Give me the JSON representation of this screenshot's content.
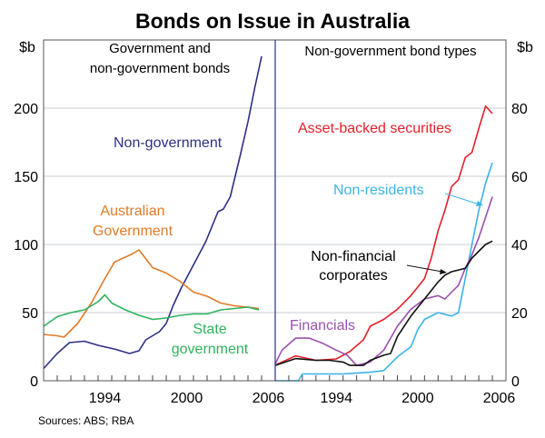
{
  "chart_data": [
    {
      "type": "line",
      "panel_title": "Government and non-government bonds",
      "ylabel": "$b",
      "ylim": [
        0,
        250
      ],
      "yticks": [
        0,
        50,
        100,
        150,
        200
      ],
      "xlim": [
        1990,
        2007
      ],
      "xtick_labels": [
        "1994",
        "2000",
        "2006"
      ],
      "grid": true,
      "series": [
        {
          "name": "Non-government",
          "color": "#2e2f87",
          "x": [
            1990,
            1991,
            1991.9,
            1993,
            1994,
            1995.3,
            1996.3,
            1997,
            1997.5,
            1998.5,
            1999,
            1999.5,
            2000.1,
            2001,
            2001.9,
            2002.8,
            2003.2,
            2003.7,
            2004.4,
            2005,
            2005.5,
            2006
          ],
          "y": [
            9,
            20,
            28,
            29,
            26,
            23,
            20,
            22,
            30,
            36,
            42,
            55,
            68,
            85,
            102,
            124,
            126,
            135,
            164,
            190,
            215,
            238
          ]
        },
        {
          "name": "Australian Government",
          "color": "#e07b27",
          "x": [
            1990,
            1991,
            1991.5,
            1992.5,
            1993.5,
            1994.5,
            1995.2,
            1996.5,
            1997,
            1998,
            1999,
            2000,
            2001,
            2002,
            2003,
            2004,
            2005,
            2005.8
          ],
          "y": [
            34,
            33,
            32,
            42,
            57,
            75,
            87,
            93,
            96,
            83,
            79,
            73,
            65,
            62,
            57,
            55,
            54,
            53
          ]
        },
        {
          "name": "State government",
          "color": "#2db35d",
          "x": [
            1990,
            1991,
            1992,
            1993,
            1994,
            1994.5,
            1995,
            1996,
            1997,
            1998,
            1999,
            2000,
            2001,
            2002,
            2003,
            2004,
            2005,
            2005.8
          ],
          "y": [
            40,
            47,
            50,
            52,
            58,
            63,
            57,
            52,
            48,
            45,
            46,
            48,
            49,
            49,
            52,
            53,
            54,
            52
          ]
        }
      ],
      "labels": [
        "Non-government",
        "Australian Government",
        "State government"
      ]
    },
    {
      "type": "line",
      "panel_title": "Non-government bond types",
      "ylabel": "$b",
      "ylim": [
        0,
        100
      ],
      "yticks": [
        0,
        20,
        40,
        60,
        80
      ],
      "xlim": [
        1990,
        2007
      ],
      "xtick_labels": [
        "1994",
        "2000",
        "2006"
      ],
      "grid": true,
      "series": [
        {
          "name": "Asset-backed securities",
          "color": "#e3202a",
          "x": [
            1990,
            1991.5,
            1993,
            1994.5,
            1995.5,
            1996.5,
            1997,
            1998,
            1999,
            2000,
            2001,
            2001.5,
            2002,
            2002.5,
            2003,
            2003.5,
            2004,
            2004.5,
            2005,
            2005.5,
            2006
          ],
          "y": [
            4.6,
            7.3,
            6,
            6.4,
            8.6,
            12,
            16,
            18,
            21,
            25,
            30,
            36,
            44,
            50,
            57,
            59,
            65.5,
            67,
            74,
            80.6,
            78.4
          ]
        },
        {
          "name": "Non-residents",
          "color": "#3bb3e6",
          "x": [
            1990,
            1991.7,
            1992,
            1995,
            1997,
            1998,
            1999,
            2000,
            2000.5,
            2001,
            2002,
            2003,
            2003.5,
            2004,
            2004.5,
            2005,
            2005.5,
            2006
          ],
          "y": [
            0,
            0,
            2,
            2,
            2.5,
            3,
            7,
            10,
            15,
            18,
            20,
            19,
            20,
            30,
            40,
            50,
            58,
            64
          ]
        },
        {
          "name": "Financials",
          "color": "#9b4fb0",
          "x": [
            1990,
            1990.5,
            1991.5,
            1992.5,
            1993.5,
            1994.5,
            1995.3,
            1996,
            1997,
            1998,
            1999,
            2000,
            2001,
            2002,
            2002.5,
            2003,
            2003.5,
            2004,
            2004.5,
            2005,
            2005.5,
            2006
          ],
          "y": [
            5,
            9,
            12.5,
            12.5,
            11,
            9,
            7.5,
            4.5,
            5.5,
            9,
            16,
            21,
            24,
            25,
            24,
            26,
            28,
            33,
            37,
            42,
            48,
            54
          ]
        },
        {
          "name": "Non-financial corporates",
          "color": "#111111",
          "x": [
            1990,
            1991.5,
            1993,
            1994,
            1995,
            1995.5,
            1996.5,
            1997,
            1998,
            1998.5,
            1999,
            2000,
            2001,
            2002,
            2002.5,
            2003,
            2004,
            2004.5,
            2005,
            2005.5,
            2006
          ],
          "y": [
            4.5,
            6.5,
            6,
            6,
            5.5,
            4.5,
            4.5,
            6,
            7.5,
            8,
            13,
            19,
            24,
            29,
            31,
            32,
            33,
            36,
            38,
            40,
            41
          ]
        }
      ],
      "labels": [
        "Asset-backed securities",
        "Non-residents",
        "Non-financial corporates",
        "Financials"
      ]
    }
  ],
  "title": "Bonds on Issue in Australia",
  "label_lines": {
    "non_gov": "Non-government",
    "aus_gov_1": "Australian",
    "aus_gov_2": "Government",
    "state_1": "State",
    "state_2": "government",
    "left_title_1": "Government and",
    "left_title_2": "non-government bonds",
    "right_title": "Non-government bond types",
    "abs": "Asset-backed securities",
    "nonres": "Non-residents",
    "nonfin_1": "Non-financial",
    "nonfin_2": "corporates",
    "fin": "Financials"
  },
  "source": "Sources: ABS; RBA"
}
